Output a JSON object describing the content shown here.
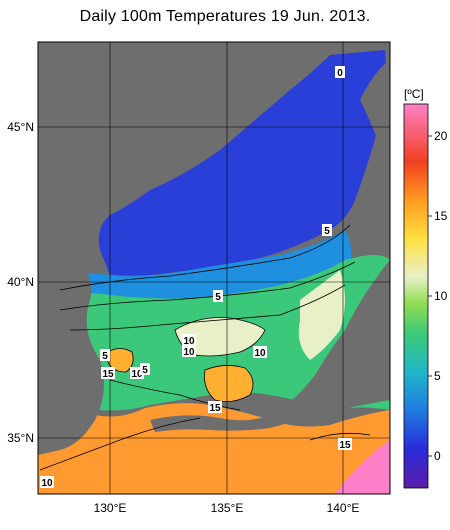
{
  "title": "Daily 100m Temperatures 19 Jun. 2013.",
  "axes": {
    "x_ticks": [
      "130°E",
      "135°E",
      "140°E"
    ],
    "y_ticks": [
      "45°N",
      "40°N",
      "35°N"
    ]
  },
  "colorbar": {
    "unit": "[ºC]",
    "ticks": [
      "20",
      "15",
      "10",
      "5",
      "0"
    ],
    "range": [
      -2,
      22
    ],
    "colors": [
      "#5a1ea8",
      "#2a2ad8",
      "#1f7ae0",
      "#1fb5c8",
      "#3cc87a",
      "#8fdc50",
      "#e8f0c8",
      "#ffe040",
      "#ff9a20",
      "#f04020",
      "#ff80c8"
    ]
  },
  "contour_labels": [
    "0",
    "5",
    "5",
    "10",
    "10",
    "10",
    "5",
    "15",
    "10",
    "5",
    "15",
    "15",
    "10"
  ],
  "colors": {
    "land": "#6e6e6e",
    "cold": "#2a3fd8",
    "cool": "#1f8fe0",
    "mid": "#3cc87a",
    "temperate": "#e8f0c8",
    "warm": "#ffb030",
    "hot": "#ff80c8"
  }
}
